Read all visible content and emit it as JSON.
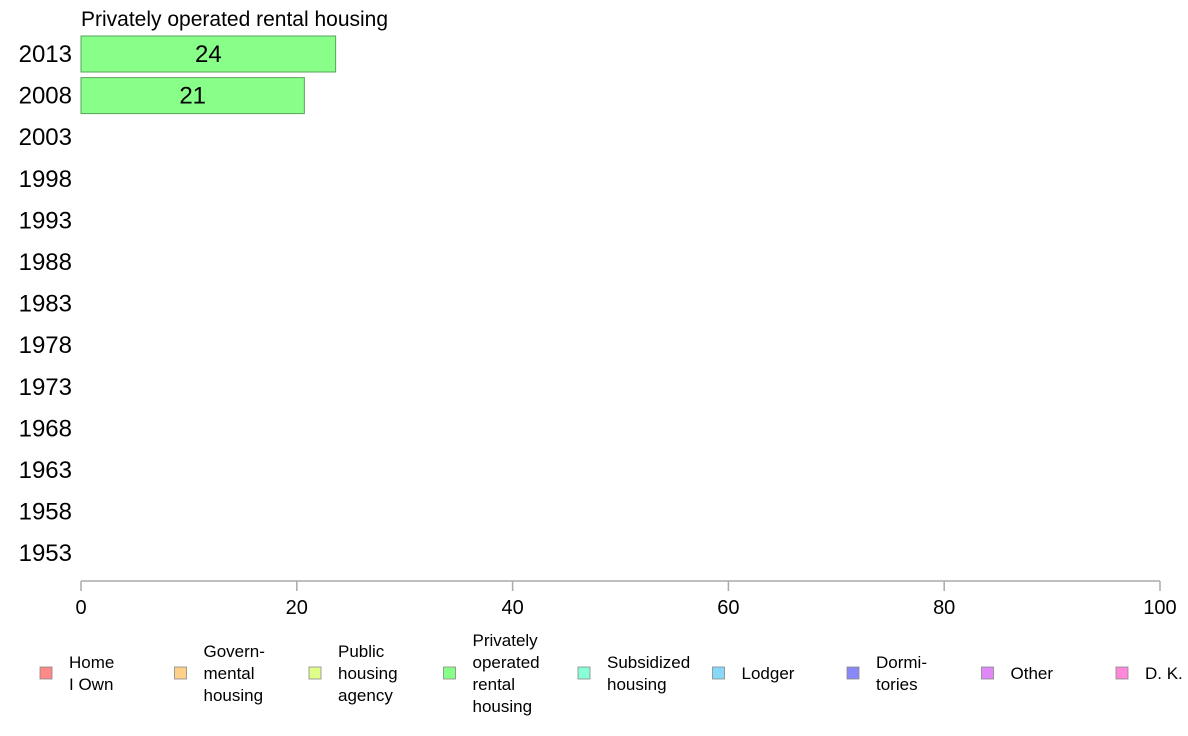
{
  "chart_data": {
    "type": "bar",
    "orientation": "horizontal",
    "title": "Privately operated rental housing",
    "categories": [
      "2013",
      "2008",
      "2003",
      "1998",
      "1993",
      "1988",
      "1983",
      "1978",
      "1973",
      "1968",
      "1963",
      "1958",
      "1953"
    ],
    "series": [
      {
        "name": "Privately operated rental housing",
        "values": [
          23.6,
          20.7,
          null,
          null,
          null,
          null,
          null,
          null,
          null,
          null,
          null,
          null,
          null
        ],
        "labels": [
          "24",
          "21",
          "",
          "",
          "",
          "",
          "",
          "",
          "",
          "",
          "",
          "",
          ""
        ],
        "color": "#88ff88"
      }
    ],
    "xlim": [
      0,
      100
    ],
    "xticks": [
      0,
      20,
      40,
      60,
      80,
      100
    ],
    "grid": false,
    "legend_placement": "bottom",
    "legend": [
      {
        "lines": [
          "Home",
          "I Own"
        ],
        "color": "#ff8888"
      },
      {
        "lines": [
          "Govern-",
          "mental",
          " housing"
        ],
        "color": "#ffd088"
      },
      {
        "lines": [
          "Public",
          "housing",
          "agency"
        ],
        "color": "#e0ff88"
      },
      {
        "lines": [
          "Privately",
          "operated",
          "rental",
          "housing"
        ],
        "color": "#88ff88"
      },
      {
        "lines": [
          "Subsidized",
          " housing"
        ],
        "color": "#88ffd8"
      },
      {
        "lines": [
          "Lodger"
        ],
        "color": "#88d8f8"
      },
      {
        "lines": [
          "Dormi-",
          "tories"
        ],
        "color": "#8888f8"
      },
      {
        "lines": [
          "Other"
        ],
        "color": "#e088f8"
      },
      {
        "lines": [
          "D. K."
        ],
        "color": "#ff88d8"
      }
    ]
  }
}
